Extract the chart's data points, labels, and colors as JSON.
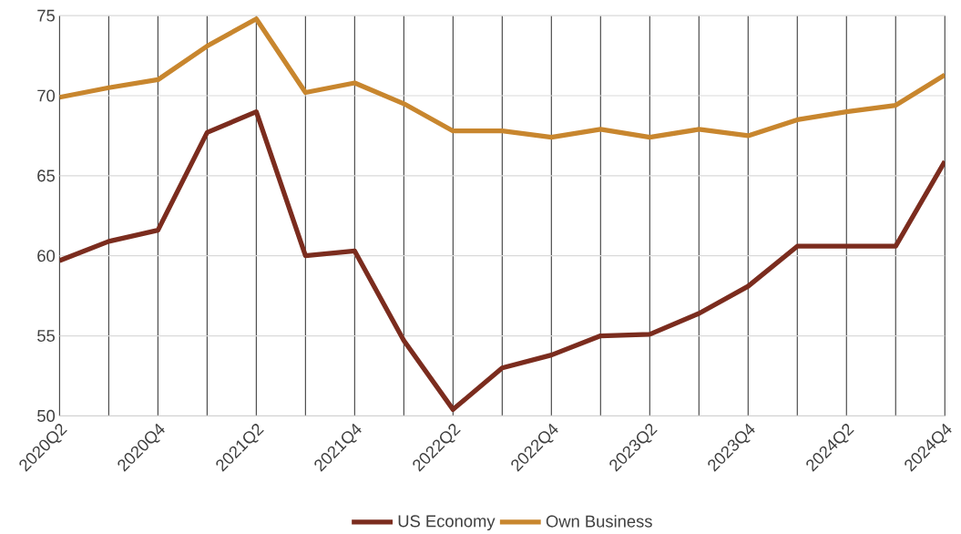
{
  "chart_data": {
    "type": "line",
    "categories": [
      "2020Q2",
      null,
      "2020Q4",
      null,
      "2021Q2",
      null,
      "2021Q4",
      null,
      "2022Q2",
      null,
      "2022Q4",
      null,
      "2023Q2",
      null,
      "2023Q4",
      null,
      "2024Q2",
      null,
      "2024Q4"
    ],
    "series": [
      {
        "name": "US Economy",
        "color": "#7b2c1e",
        "values": [
          59.7,
          60.9,
          61.6,
          67.7,
          69.0,
          60.0,
          60.3,
          54.7,
          50.4,
          53.0,
          53.8,
          55.0,
          55.1,
          56.4,
          58.1,
          60.6,
          60.6,
          60.6,
          65.9
        ]
      },
      {
        "name": "Own Business",
        "color": "#c8862e",
        "values": [
          69.9,
          70.5,
          71.0,
          73.1,
          74.8,
          70.2,
          70.8,
          69.5,
          67.8,
          67.8,
          67.4,
          67.9,
          67.4,
          67.9,
          67.5,
          68.5,
          69.0,
          69.4,
          71.3
        ]
      }
    ],
    "ylim": [
      50,
      75
    ],
    "yticks": [
      50,
      55,
      60,
      65,
      70,
      75
    ],
    "grid": true,
    "legend": "bottom",
    "marker": "none",
    "line_style": "solid"
  }
}
